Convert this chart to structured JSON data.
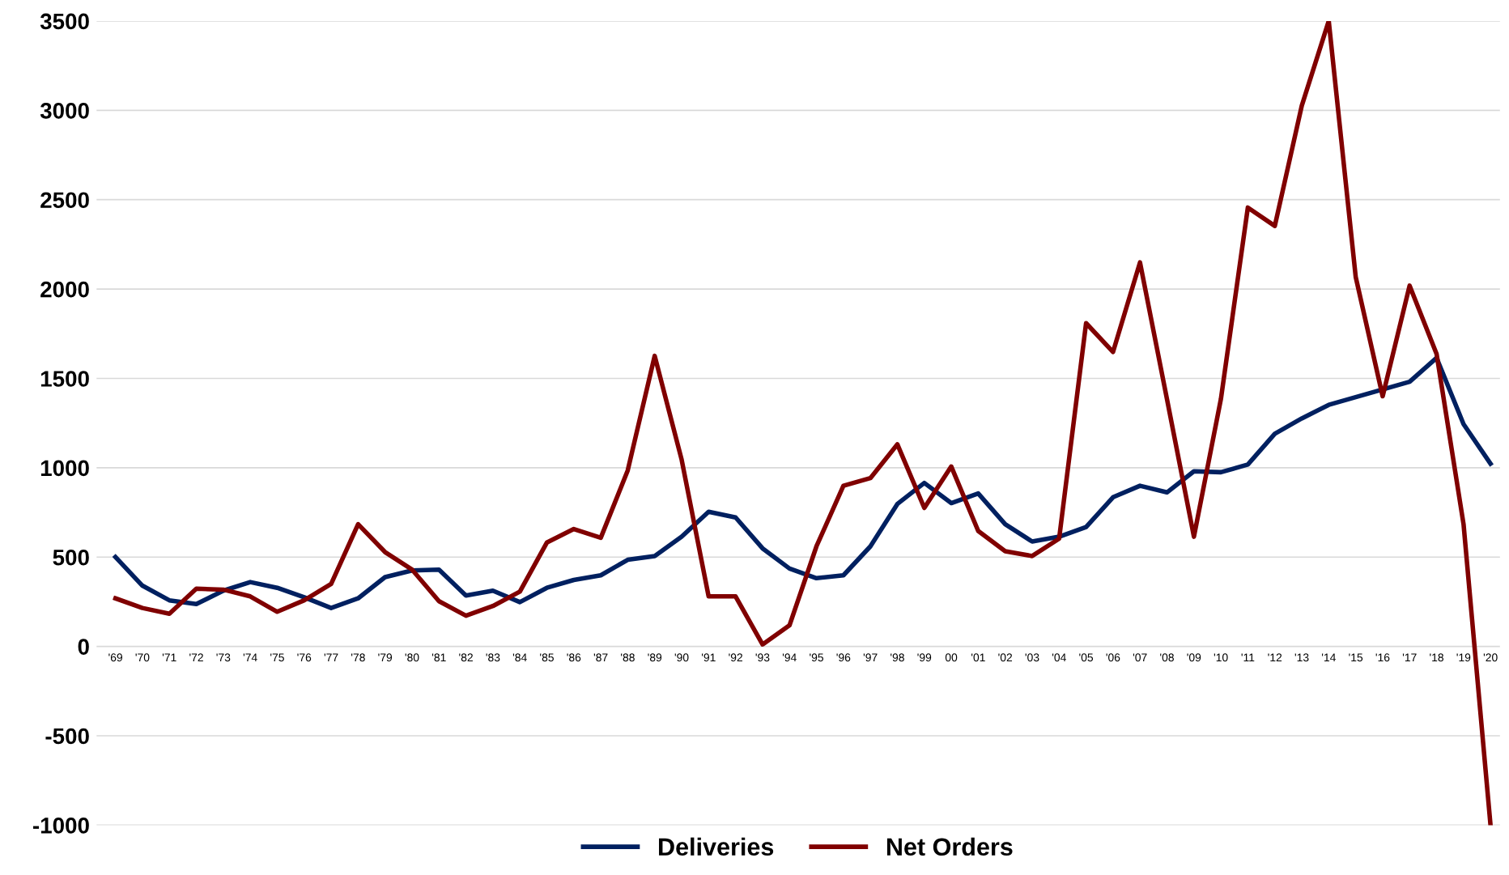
{
  "chart_data": {
    "type": "line",
    "categories": [
      "'69",
      "'70",
      "'71",
      "'72",
      "'73",
      "'74",
      "'75",
      "'76",
      "'77",
      "'78",
      "'79",
      "'80",
      "'81",
      "'82",
      "'83",
      "'84",
      "'85",
      "'86",
      "'87",
      "'88",
      "'89",
      "'90",
      "'91",
      "'92",
      "'93",
      "'94",
      "'95",
      "'96",
      "'97",
      "'98",
      "'99",
      "00",
      "'01",
      "'02",
      "'03",
      "'04",
      "'05",
      "'06",
      "'07",
      "'08",
      "'09",
      "'10",
      "'11",
      "'12",
      "'13",
      "'14",
      "'15",
      "'16",
      "'17",
      "'18",
      "'19",
      "'20"
    ],
    "series": [
      {
        "name": "Deliveries",
        "color": "#002060",
        "values": [
          500,
          340,
          258,
          237,
          312,
          360,
          328,
          275,
          215,
          269,
          388,
          425,
          430,
          285,
          312,
          248,
          328,
          372,
          398,
          485,
          506,
          614,
          754,
          722,
          549,
          436,
          382,
          398,
          560,
          797,
          915,
          802,
          856,
          684,
          587,
          614,
          668,
          835,
          899,
          862,
          980,
          975,
          1018,
          1190,
          1276,
          1352,
          1395,
          1438,
          1481,
          1615,
          1244,
          1023
        ]
      },
      {
        "name": "Net Orders",
        "color": "#800000",
        "values": [
          269,
          215,
          183,
          323,
          318,
          280,
          194,
          258,
          350,
          684,
          528,
          430,
          253,
          172,
          226,
          307,
          581,
          657,
          608,
          985,
          1626,
          1045,
          280,
          280,
          11,
          118,
          560,
          899,
          942,
          1131,
          775,
          1007,
          646,
          533,
          506,
          603,
          1809,
          1648,
          2149,
          1384,
          614,
          1384,
          2456,
          2353,
          3026,
          3500,
          2068,
          1400,
          2019,
          1637,
          684,
          -1000
        ]
      }
    ],
    "ylim": [
      -1000,
      3500
    ],
    "yticks": [
      -1000,
      -500,
      0,
      500,
      1000,
      1500,
      2000,
      2500,
      3000,
      3500
    ],
    "grid": "y",
    "legend": "bottom",
    "line_style": "solid",
    "marker": "none"
  }
}
